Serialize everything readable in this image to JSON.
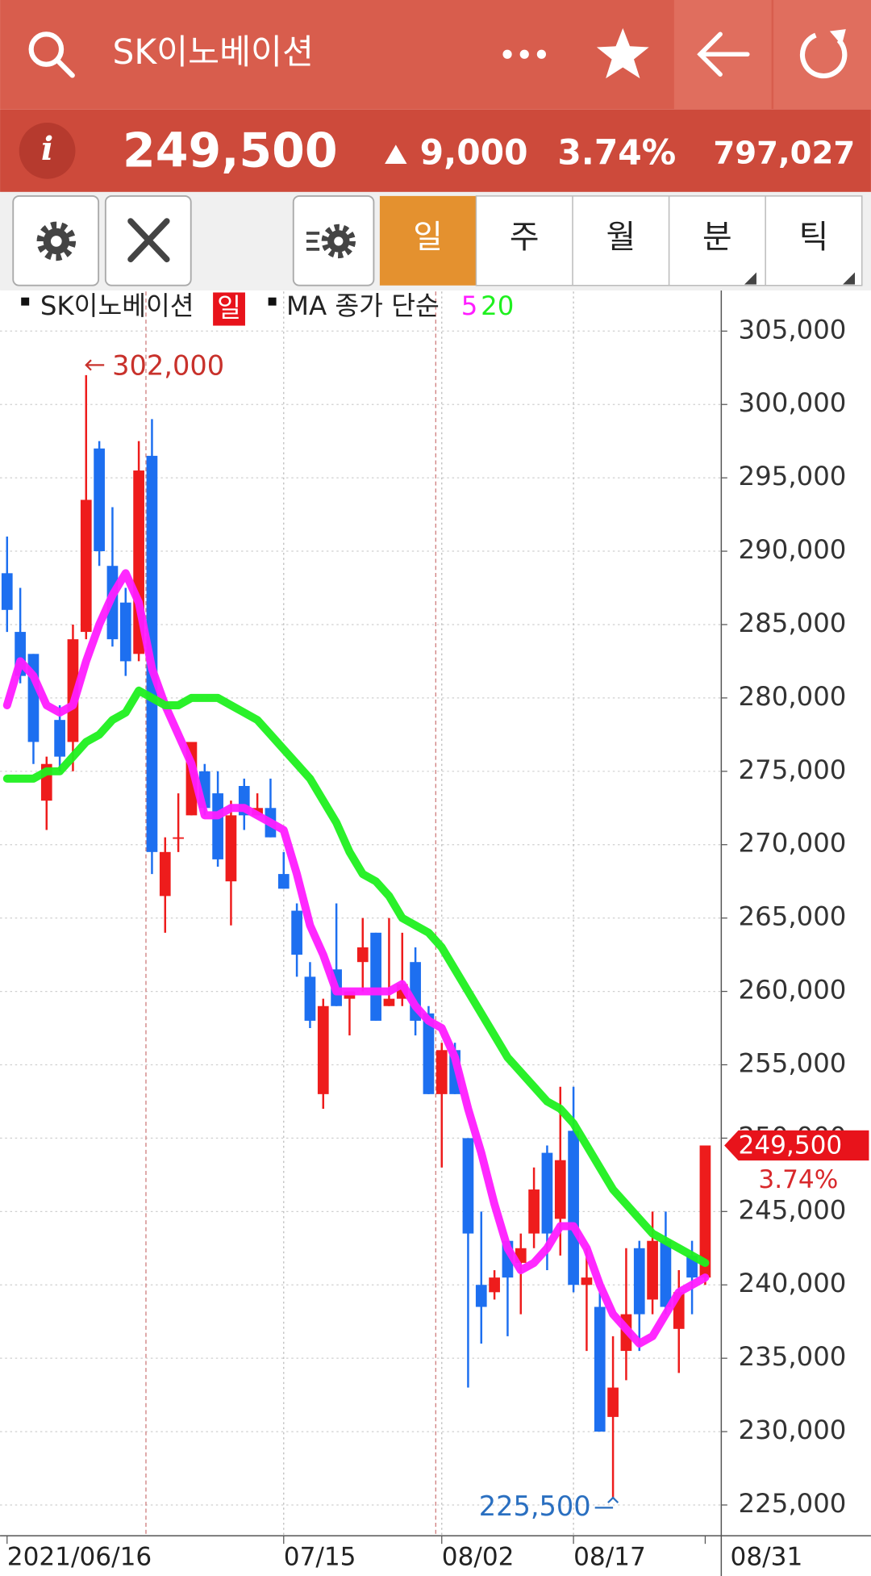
{
  "app_bar": {
    "title": "SK이노베이션"
  },
  "quote": {
    "info_icon": "i",
    "price": "249,500",
    "change": "9,000",
    "change_pct": "3.74%",
    "volume": "797,027"
  },
  "tabs": [
    "일",
    "주",
    "월",
    "분",
    "틱"
  ],
  "chart_data": {
    "type": "candlestick",
    "legend": {
      "name": "SK이노베이션",
      "period": "일",
      "ma_label": "MA 종가 단순"
    },
    "categories": [
      "2021/06/16",
      null,
      null,
      null,
      null,
      null,
      null,
      null,
      null,
      null,
      null,
      null,
      null,
      null,
      null,
      null,
      null,
      null,
      null,
      null,
      null,
      "07/15",
      null,
      null,
      null,
      null,
      null,
      null,
      null,
      null,
      null,
      null,
      null,
      "08/02",
      null,
      null,
      null,
      null,
      null,
      null,
      null,
      null,
      null,
      "08/17",
      null,
      null,
      null,
      null,
      null,
      null,
      null,
      null,
      null,
      "08/31"
    ],
    "series": {
      "name": "SK이노베이션",
      "up_color": "#ee1c1c",
      "down_color": "#1d6ff0",
      "open": [
        288500,
        284500,
        283000,
        273000,
        278500,
        277000,
        284500,
        297000,
        289000,
        286500,
        283000,
        296500,
        266500,
        270500,
        272000,
        275000,
        273500,
        267500,
        274000,
        272000,
        272500,
        268000,
        265500,
        261000,
        253000,
        261500,
        259500,
        262000,
        264000,
        259000,
        259500,
        262000,
        258500,
        253000,
        256000,
        250000,
        240000,
        239500,
        243000,
        241500,
        243500,
        249000,
        244500,
        250500,
        240000,
        238500,
        231000,
        235500,
        242500,
        239000,
        243000,
        237000,
        242000,
        240500
      ],
      "high": [
        291000,
        287500,
        283000,
        276000,
        279500,
        285000,
        302000,
        297500,
        293000,
        287500,
        297500,
        299000,
        270500,
        273500,
        277000,
        275500,
        275000,
        273000,
        274500,
        273500,
        274500,
        269500,
        266000,
        262000,
        259500,
        266000,
        260000,
        265000,
        264000,
        265000,
        264000,
        263000,
        259000,
        256500,
        256500,
        250000,
        245000,
        241000,
        243000,
        243500,
        248000,
        249500,
        253500,
        253500,
        242500,
        239500,
        236500,
        242500,
        243000,
        245000,
        245000,
        241000,
        243000,
        249500
      ],
      "low": [
        284500,
        281000,
        275500,
        271000,
        275000,
        275000,
        284000,
        289000,
        283500,
        281500,
        282500,
        268000,
        264000,
        269500,
        272000,
        272000,
        268500,
        264500,
        271000,
        272000,
        270500,
        267000,
        261000,
        257500,
        252000,
        259000,
        257000,
        260000,
        258000,
        259000,
        259000,
        257000,
        253000,
        248000,
        253000,
        233000,
        236000,
        239000,
        236500,
        238000,
        242500,
        241000,
        242000,
        239500,
        235500,
        230000,
        225500,
        233500,
        235500,
        238000,
        238000,
        234000,
        238000,
        240000
      ],
      "close": [
        286000,
        281500,
        277000,
        275500,
        276000,
        284000,
        293500,
        290000,
        284000,
        282500,
        295500,
        269500,
        269500,
        270500,
        277000,
        272500,
        269000,
        272000,
        272000,
        272500,
        270500,
        267000,
        262500,
        258000,
        259000,
        259000,
        260000,
        263000,
        258000,
        259500,
        260500,
        258000,
        253000,
        256000,
        253000,
        243500,
        238500,
        240500,
        240500,
        242500,
        246500,
        243500,
        248500,
        240000,
        240500,
        230000,
        233000,
        238000,
        238000,
        243000,
        238500,
        239500,
        240500,
        249500
      ]
    },
    "ma_series": [
      {
        "name": "5",
        "color": "#ff1cff",
        "values": [
          279500,
          282500,
          281500,
          279500,
          279000,
          279500,
          282500,
          285000,
          287000,
          288500,
          286500,
          282000,
          279500,
          277500,
          275500,
          272000,
          272000,
          272500,
          272500,
          272000,
          271500,
          271000,
          268000,
          264500,
          262500,
          260000,
          260000,
          260000,
          260000,
          260000,
          260500,
          259000,
          258000,
          257500,
          255500,
          252000,
          249000,
          245500,
          242500,
          241000,
          241500,
          242500,
          244000,
          244000,
          242500,
          240000,
          238000,
          237000,
          236000,
          236500,
          238000,
          239500,
          240000,
          240500
        ]
      },
      {
        "name": "20",
        "color": "#1ff01f",
        "values": [
          274500,
          274500,
          274500,
          275000,
          275000,
          276000,
          277000,
          277500,
          278500,
          279000,
          280500,
          280000,
          279500,
          279500,
          280000,
          280000,
          280000,
          279500,
          279000,
          278500,
          277500,
          276500,
          275500,
          274500,
          273000,
          271500,
          269500,
          268000,
          267500,
          266500,
          265000,
          264500,
          264000,
          263000,
          261500,
          260000,
          258500,
          257000,
          255500,
          254500,
          253500,
          252500,
          252000,
          251000,
          249500,
          248000,
          246500,
          245500,
          244500,
          243500,
          243000,
          242500,
          242000,
          241500
        ]
      }
    ],
    "ylim": [
      222900,
      307700
    ],
    "yticks": [
      {
        "value": 225000,
        "label": "225,000"
      },
      {
        "value": 230000,
        "label": "230,000"
      },
      {
        "value": 235000,
        "label": "235,000"
      },
      {
        "value": 240000,
        "label": "240,000"
      },
      {
        "value": 245000,
        "label": "245,000"
      },
      {
        "value": 250000,
        "label": "250,000"
      },
      {
        "value": 255000,
        "label": "255,000"
      },
      {
        "value": 260000,
        "label": "260,000"
      },
      {
        "value": 265000,
        "label": "265,000"
      },
      {
        "value": 270000,
        "label": "270,000"
      },
      {
        "value": 275000,
        "label": "275,000"
      },
      {
        "value": 280000,
        "label": "280,000"
      },
      {
        "value": 285000,
        "label": "285,000"
      },
      {
        "value": 290000,
        "label": "290,000"
      },
      {
        "value": 295000,
        "label": "295,000"
      },
      {
        "value": 300000,
        "label": "300,000"
      },
      {
        "value": 305000,
        "label": "305,000"
      }
    ],
    "grid": true,
    "max_label": {
      "value": 302000,
      "label": "302,000"
    },
    "min_label": {
      "value": 225500,
      "label": "225,500"
    },
    "last_price": {
      "value": 249500,
      "label": "249,500"
    },
    "last_change": "3.74%"
  }
}
